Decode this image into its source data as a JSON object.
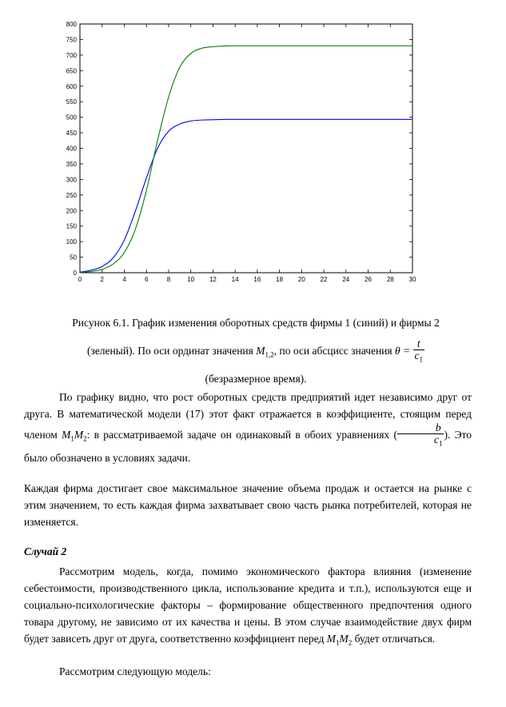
{
  "chart_data": {
    "type": "line",
    "xlim": [
      0,
      30
    ],
    "ylim": [
      0,
      800
    ],
    "x_ticks": [
      "0",
      "2",
      "4",
      "6",
      "8",
      "10",
      "12",
      "14",
      "16",
      "18",
      "20",
      "22",
      "24",
      "26",
      "28",
      "30"
    ],
    "y_ticks": [
      "0",
      "50",
      "100",
      "150",
      "200",
      "250",
      "300",
      "350",
      "400",
      "450",
      "500",
      "550",
      "600",
      "650",
      "700",
      "750",
      "800"
    ],
    "grid": false,
    "series": [
      {
        "color": "#0000ff",
        "x": [
          0,
          1,
          2,
          3,
          4,
          5,
          6,
          7,
          8,
          9,
          10,
          11,
          12,
          13,
          14,
          15,
          16,
          18,
          20,
          22,
          24,
          26,
          28,
          30
        ],
        "y": [
          2,
          8,
          20,
          48,
          105,
          198,
          305,
          400,
          455,
          478,
          488,
          491,
          492,
          493,
          493,
          493,
          493,
          493,
          493,
          493,
          493,
          493,
          493,
          493
        ]
      },
      {
        "color": "#008000",
        "x": [
          0,
          1,
          2,
          3,
          4,
          5,
          6,
          7,
          8,
          9,
          10,
          11,
          12,
          13,
          14,
          15,
          16,
          18,
          20,
          22,
          24,
          26,
          28,
          30
        ],
        "y": [
          1,
          4,
          11,
          28,
          65,
          140,
          265,
          425,
          565,
          660,
          705,
          722,
          727,
          729,
          730,
          730,
          730,
          730,
          730,
          730,
          730,
          730,
          730,
          730
        ]
      }
    ]
  },
  "caption": {
    "line1": "Рисунок 6.1. График изменения оборотных средств фирмы 1 (синий) и фирмы 2",
    "line2_a": "(зеленый). По оси ординат значения",
    "m_sym": "M",
    "m_sub": "1,2",
    "line2_b": ", по оси абсцисс значения",
    "theta": "θ =",
    "t": "t",
    "c": "c",
    "c_sub": "1",
    "line3": "(безразмерное время)."
  },
  "para1": {
    "a": "По графику видно, что рост оборотных средств предприятий идет независимо друг от друга. В математической модели (17) этот факт отражается в коэффициенте, стоящим перед членом",
    "m1": "M",
    "s1": "1",
    "m2": "M",
    "s2": "2",
    "b": ": в рассматриваемой задаче он одинаковый в обоих уравнениях (",
    "frac_num": "b",
    "frac_den": "c",
    "frac_den_sub": "1",
    "c": "). Это было обозначено в условиях задачи."
  },
  "para2": "Каждая фирма достигает свое максимальное значение объема продаж и остается на рынке с этим значением, то есть каждая фирма захватывает свою часть рынка потребителей, которая не изменяется.",
  "heading": "Случай 2",
  "para3": {
    "a": "Рассмотрим модель, когда, помимо экономического фактора влияния (изменение себестоимости, производственного цикла, использование кредита и т.п.), используются еще и социально-психологические факторы – формирование общественного предпочтения одного товара другому, не зависимо от их качества и цены. В этом случае взаимодействие двух фирм будет зависеть друг от друга, соответственно коэффициент перед",
    "m1": "M",
    "s1": "1",
    "m2": "M",
    "s2": "2",
    "b": "будет отличаться."
  },
  "para4": "Рассмотрим следующую модель:"
}
